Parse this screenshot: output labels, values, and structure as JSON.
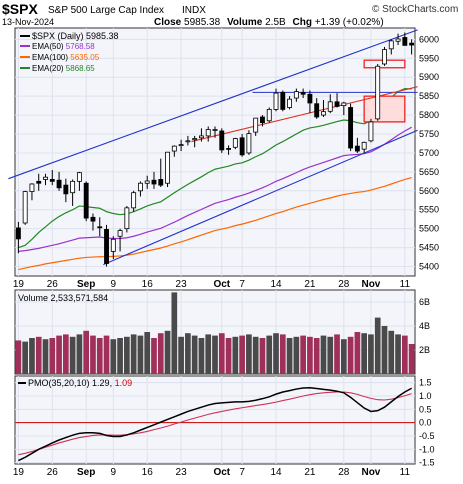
{
  "header": {
    "symbol": "$SPX",
    "name": "S&P 500 Large Cap Index",
    "exchange": "INDX",
    "date": "13-Nov-2024",
    "close_label": "Close",
    "close": "5985.38",
    "volume_label": "Volume",
    "volume": "2.5B",
    "chg_label": "Chg",
    "chg": "+1.39 (+0.02%)",
    "brand": "© StockCharts.com"
  },
  "legend": [
    {
      "label": "$SPX (Daily)",
      "value": "5985.38",
      "color": "#000000"
    },
    {
      "label": "EMA(50)",
      "value": "5768.58",
      "color": "#9933cc"
    },
    {
      "label": "EMA(100)",
      "value": "5635.05",
      "color": "#ff6600"
    },
    {
      "label": "EMA(20)",
      "value": "5868.65",
      "color": "#228822"
    }
  ],
  "volume_panel": {
    "label": "Volume",
    "value": "2,533,571,584"
  },
  "pmo_panel": {
    "label": "PMO(35,20,10)",
    "value1": "1.29",
    "value2": "1.09",
    "value2_color": "#cc0000"
  },
  "x_ticks": [
    {
      "label": "19",
      "idx": 0
    },
    {
      "label": "26",
      "idx": 5
    },
    {
      "label": "Sep",
      "idx": 10,
      "bold": true
    },
    {
      "label": "9",
      "idx": 14
    },
    {
      "label": "16",
      "idx": 19
    },
    {
      "label": "23",
      "idx": 24
    },
    {
      "label": "Oct",
      "idx": 30,
      "bold": true
    },
    {
      "label": "7",
      "idx": 33
    },
    {
      "label": "14",
      "idx": 38
    },
    {
      "label": "21",
      "idx": 43
    },
    {
      "label": "28",
      "idx": 48
    },
    {
      "label": "Nov",
      "idx": 52,
      "bold": true
    },
    {
      "label": "11",
      "idx": 57
    }
  ],
  "chart_data": {
    "type": "candlestick",
    "price_axis": {
      "min": 5375,
      "max": 6030,
      "ticks": [
        5400,
        5450,
        5500,
        5550,
        5600,
        5650,
        5700,
        5750,
        5800,
        5850,
        5900,
        5950,
        6000
      ]
    },
    "volume_axis": {
      "min": 0,
      "max": 7,
      "unit": "B",
      "ticks": [
        2,
        4,
        6
      ]
    },
    "pmo_axis": {
      "min": -1.55,
      "max": 1.75,
      "ticks": [
        -1.5,
        -1.0,
        -0.5,
        0.0,
        0.5,
        1.0,
        1.5
      ]
    },
    "candles": [
      {
        "o": 5502,
        "h": 5518,
        "l": 5435,
        "c": 5473
      },
      {
        "o": 5515,
        "h": 5600,
        "l": 5510,
        "c": 5598
      },
      {
        "o": 5598,
        "h": 5620,
        "l": 5575,
        "c": 5618
      },
      {
        "o": 5625,
        "h": 5645,
        "l": 5600,
        "c": 5620
      },
      {
        "o": 5630,
        "h": 5645,
        "l": 5615,
        "c": 5636
      },
      {
        "o": 5630,
        "h": 5655,
        "l": 5615,
        "c": 5625
      },
      {
        "o": 5628,
        "h": 5650,
        "l": 5600,
        "c": 5608
      },
      {
        "o": 5615,
        "h": 5632,
        "l": 5570,
        "c": 5592
      },
      {
        "o": 5595,
        "h": 5630,
        "l": 5560,
        "c": 5625
      },
      {
        "o": 5625,
        "h": 5650,
        "l": 5600,
        "c": 5648
      },
      {
        "o": 5620,
        "h": 5625,
        "l": 5520,
        "c": 5528
      },
      {
        "o": 5530,
        "h": 5540,
        "l": 5495,
        "c": 5520
      },
      {
        "o": 5505,
        "h": 5530,
        "l": 5480,
        "c": 5503
      },
      {
        "o": 5498,
        "h": 5510,
        "l": 5400,
        "c": 5408
      },
      {
        "o": 5440,
        "h": 5480,
        "l": 5420,
        "c": 5472
      },
      {
        "o": 5480,
        "h": 5500,
        "l": 5440,
        "c": 5495
      },
      {
        "o": 5500,
        "h": 5560,
        "l": 5490,
        "c": 5555
      },
      {
        "o": 5555,
        "h": 5600,
        "l": 5545,
        "c": 5595
      },
      {
        "o": 5600,
        "h": 5625,
        "l": 5585,
        "c": 5620
      },
      {
        "o": 5620,
        "h": 5640,
        "l": 5605,
        "c": 5626
      },
      {
        "o": 5628,
        "h": 5650,
        "l": 5605,
        "c": 5618
      },
      {
        "o": 5630,
        "h": 5685,
        "l": 5610,
        "c": 5615
      },
      {
        "o": 5620,
        "h": 5700,
        "l": 5610,
        "c": 5702
      },
      {
        "o": 5705,
        "h": 5720,
        "l": 5690,
        "c": 5718
      },
      {
        "o": 5720,
        "h": 5735,
        "l": 5705,
        "c": 5722
      },
      {
        "o": 5730,
        "h": 5745,
        "l": 5720,
        "c": 5732
      },
      {
        "o": 5735,
        "h": 5745,
        "l": 5715,
        "c": 5738
      },
      {
        "o": 5740,
        "h": 5765,
        "l": 5730,
        "c": 5745
      },
      {
        "o": 5745,
        "h": 5770,
        "l": 5730,
        "c": 5762
      },
      {
        "o": 5760,
        "h": 5770,
        "l": 5740,
        "c": 5762
      },
      {
        "o": 5758,
        "h": 5765,
        "l": 5700,
        "c": 5708
      },
      {
        "o": 5712,
        "h": 5720,
        "l": 5695,
        "c": 5710
      },
      {
        "o": 5715,
        "h": 5740,
        "l": 5710,
        "c": 5738
      },
      {
        "o": 5740,
        "h": 5750,
        "l": 5690,
        "c": 5695
      },
      {
        "o": 5700,
        "h": 5760,
        "l": 5695,
        "c": 5751
      },
      {
        "o": 5755,
        "h": 5790,
        "l": 5745,
        "c": 5792
      },
      {
        "o": 5795,
        "h": 5800,
        "l": 5770,
        "c": 5780
      },
      {
        "o": 5785,
        "h": 5820,
        "l": 5780,
        "c": 5815
      },
      {
        "o": 5815,
        "h": 5870,
        "l": 5810,
        "c": 5858
      },
      {
        "o": 5860,
        "h": 5865,
        "l": 5810,
        "c": 5815
      },
      {
        "o": 5820,
        "h": 5850,
        "l": 5815,
        "c": 5842
      },
      {
        "o": 5845,
        "h": 5870,
        "l": 5835,
        "c": 5862
      },
      {
        "o": 5860,
        "h": 5870,
        "l": 5845,
        "c": 5855
      },
      {
        "o": 5855,
        "h": 5865,
        "l": 5805,
        "c": 5832
      },
      {
        "o": 5830,
        "h": 5845,
        "l": 5790,
        "c": 5795
      },
      {
        "o": 5800,
        "h": 5840,
        "l": 5795,
        "c": 5809
      },
      {
        "o": 5810,
        "h": 5855,
        "l": 5805,
        "c": 5835
      },
      {
        "o": 5835,
        "h": 5858,
        "l": 5820,
        "c": 5823
      },
      {
        "o": 5825,
        "h": 5835,
        "l": 5800,
        "c": 5832
      },
      {
        "o": 5820,
        "h": 5830,
        "l": 5705,
        "c": 5713
      },
      {
        "o": 5718,
        "h": 5740,
        "l": 5700,
        "c": 5705
      },
      {
        "o": 5710,
        "h": 5730,
        "l": 5700,
        "c": 5728
      },
      {
        "o": 5732,
        "h": 5790,
        "l": 5728,
        "c": 5782
      },
      {
        "o": 5790,
        "h": 5935,
        "l": 5785,
        "c": 5929
      },
      {
        "o": 5935,
        "h": 5980,
        "l": 5930,
        "c": 5973
      },
      {
        "o": 5975,
        "h": 6000,
        "l": 5960,
        "c": 5996
      },
      {
        "o": 5995,
        "h": 6015,
        "l": 5985,
        "c": 6001
      },
      {
        "o": 6005,
        "h": 6018,
        "l": 5985,
        "c": 5984
      },
      {
        "o": 5990,
        "h": 6000,
        "l": 5960,
        "c": 5985
      }
    ],
    "ema20": [
      5450,
      5456,
      5472,
      5490,
      5505,
      5520,
      5532,
      5542,
      5550,
      5560,
      5558,
      5556,
      5554,
      5545,
      5540,
      5537,
      5539,
      5545,
      5552,
      5560,
      5566,
      5571,
      5583,
      5595,
      5606,
      5617,
      5627,
      5637,
      5648,
      5657,
      5661,
      5665,
      5671,
      5674,
      5681,
      5690,
      5698,
      5709,
      5721,
      5730,
      5740,
      5750,
      5760,
      5766,
      5769,
      5773,
      5778,
      5783,
      5787,
      5785,
      5780,
      5777,
      5785,
      5805,
      5826,
      5847,
      5862,
      5870,
      5869
    ],
    "ema50": [
      5440,
      5442,
      5445,
      5448,
      5452,
      5456,
      5460,
      5465,
      5470,
      5475,
      5476,
      5477,
      5478,
      5475,
      5474,
      5474,
      5476,
      5480,
      5485,
      5491,
      5496,
      5501,
      5509,
      5517,
      5526,
      5535,
      5543,
      5551,
      5559,
      5567,
      5572,
      5577,
      5583,
      5588,
      5594,
      5601,
      5608,
      5616,
      5625,
      5632,
      5640,
      5648,
      5656,
      5663,
      5669,
      5675,
      5681,
      5687,
      5693,
      5695,
      5696,
      5698,
      5703,
      5712,
      5723,
      5735,
      5747,
      5758,
      5768
    ],
    "ema100": [
      5392,
      5396,
      5400,
      5403,
      5407,
      5410,
      5413,
      5416,
      5419,
      5422,
      5424,
      5425,
      5426,
      5426,
      5427,
      5428,
      5430,
      5433,
      5437,
      5441,
      5445,
      5449,
      5454,
      5460,
      5465,
      5471,
      5477,
      5483,
      5489,
      5495,
      5499,
      5503,
      5508,
      5512,
      5517,
      5522,
      5528,
      5534,
      5540,
      5545,
      5551,
      5557,
      5562,
      5567,
      5572,
      5577,
      5581,
      5586,
      5590,
      5593,
      5596,
      5598,
      5602,
      5607,
      5612,
      5618,
      5624,
      5630,
      5635
    ],
    "volume": [
      2.8,
      2.7,
      3.0,
      3.1,
      2.9,
      3.0,
      3.2,
      3.3,
      3.1,
      3.3,
      3.6,
      3.2,
      3.0,
      3.2,
      2.9,
      3.0,
      3.1,
      3.3,
      3.2,
      3.5,
      3.0,
      3.4,
      3.6,
      6.8,
      3.1,
      3.4,
      3.2,
      3.0,
      3.3,
      3.2,
      3.4,
      3.0,
      3.1,
      3.2,
      3.3,
      3.1,
      3.0,
      3.2,
      3.4,
      3.3,
      3.0,
      3.1,
      3.2,
      3.1,
      3.0,
      3.2,
      3.1,
      3.3,
      2.9,
      3.1,
      3.5,
      3.4,
      3.3,
      4.7,
      4.0,
      3.6,
      3.3,
      3.2,
      2.5
    ],
    "pmo": [
      -1.42,
      -1.3,
      -1.15,
      -1.0,
      -0.88,
      -0.76,
      -0.65,
      -0.56,
      -0.47,
      -0.4,
      -0.38,
      -0.38,
      -0.4,
      -0.48,
      -0.52,
      -0.52,
      -0.46,
      -0.38,
      -0.28,
      -0.18,
      -0.08,
      0.02,
      0.12,
      0.22,
      0.32,
      0.42,
      0.5,
      0.58,
      0.66,
      0.72,
      0.74,
      0.76,
      0.78,
      0.78,
      0.8,
      0.84,
      0.9,
      0.97,
      1.07,
      1.15,
      1.2,
      1.26,
      1.3,
      1.31,
      1.28,
      1.25,
      1.22,
      1.18,
      1.12,
      0.95,
      0.75,
      0.55,
      0.42,
      0.45,
      0.58,
      0.78,
      0.98,
      1.15,
      1.29
    ],
    "pmo_signal": [
      -1.2,
      -1.15,
      -1.08,
      -1.0,
      -0.92,
      -0.84,
      -0.76,
      -0.69,
      -0.62,
      -0.56,
      -0.52,
      -0.48,
      -0.46,
      -0.46,
      -0.47,
      -0.47,
      -0.45,
      -0.42,
      -0.38,
      -0.33,
      -0.26,
      -0.2,
      -0.13,
      -0.05,
      0.02,
      0.1,
      0.17,
      0.24,
      0.31,
      0.37,
      0.42,
      0.47,
      0.52,
      0.56,
      0.6,
      0.64,
      0.68,
      0.72,
      0.77,
      0.83,
      0.88,
      0.94,
      1.0,
      1.05,
      1.09,
      1.12,
      1.14,
      1.15,
      1.15,
      1.12,
      1.06,
      0.98,
      0.91,
      0.86,
      0.85,
      0.88,
      0.94,
      1.01,
      1.09
    ],
    "trendlines": [
      {
        "color": "#2233cc",
        "p1": {
          "idx": 0,
          "v": 5632
        },
        "p2": {
          "idx": 58,
          "v": 6025
        }
      },
      {
        "color": "#2233cc",
        "p1": {
          "idx": 14,
          "v": 5405
        },
        "p2": {
          "idx": 58,
          "v": 5760
        }
      },
      {
        "color": "#2233cc",
        "p1": {
          "idx": 36,
          "v": 5860
        },
        "p2": {
          "idx": 58,
          "v": 5860
        }
      },
      {
        "color": "#dd3322",
        "p1": {
          "idx": 27,
          "v": 5730
        },
        "p2": {
          "idx": 58,
          "v": 5875
        }
      }
    ],
    "boxes": [
      {
        "color": "#ee2222",
        "fill": "none",
        "i1": 51.5,
        "i2": 56.5,
        "v1": 5945,
        "v2": 5925
      },
      {
        "color": "#ee2222",
        "fill": "#ffdddd",
        "i1": 51.5,
        "i2": 56.5,
        "v1": 5850,
        "v2": 5782
      }
    ]
  }
}
